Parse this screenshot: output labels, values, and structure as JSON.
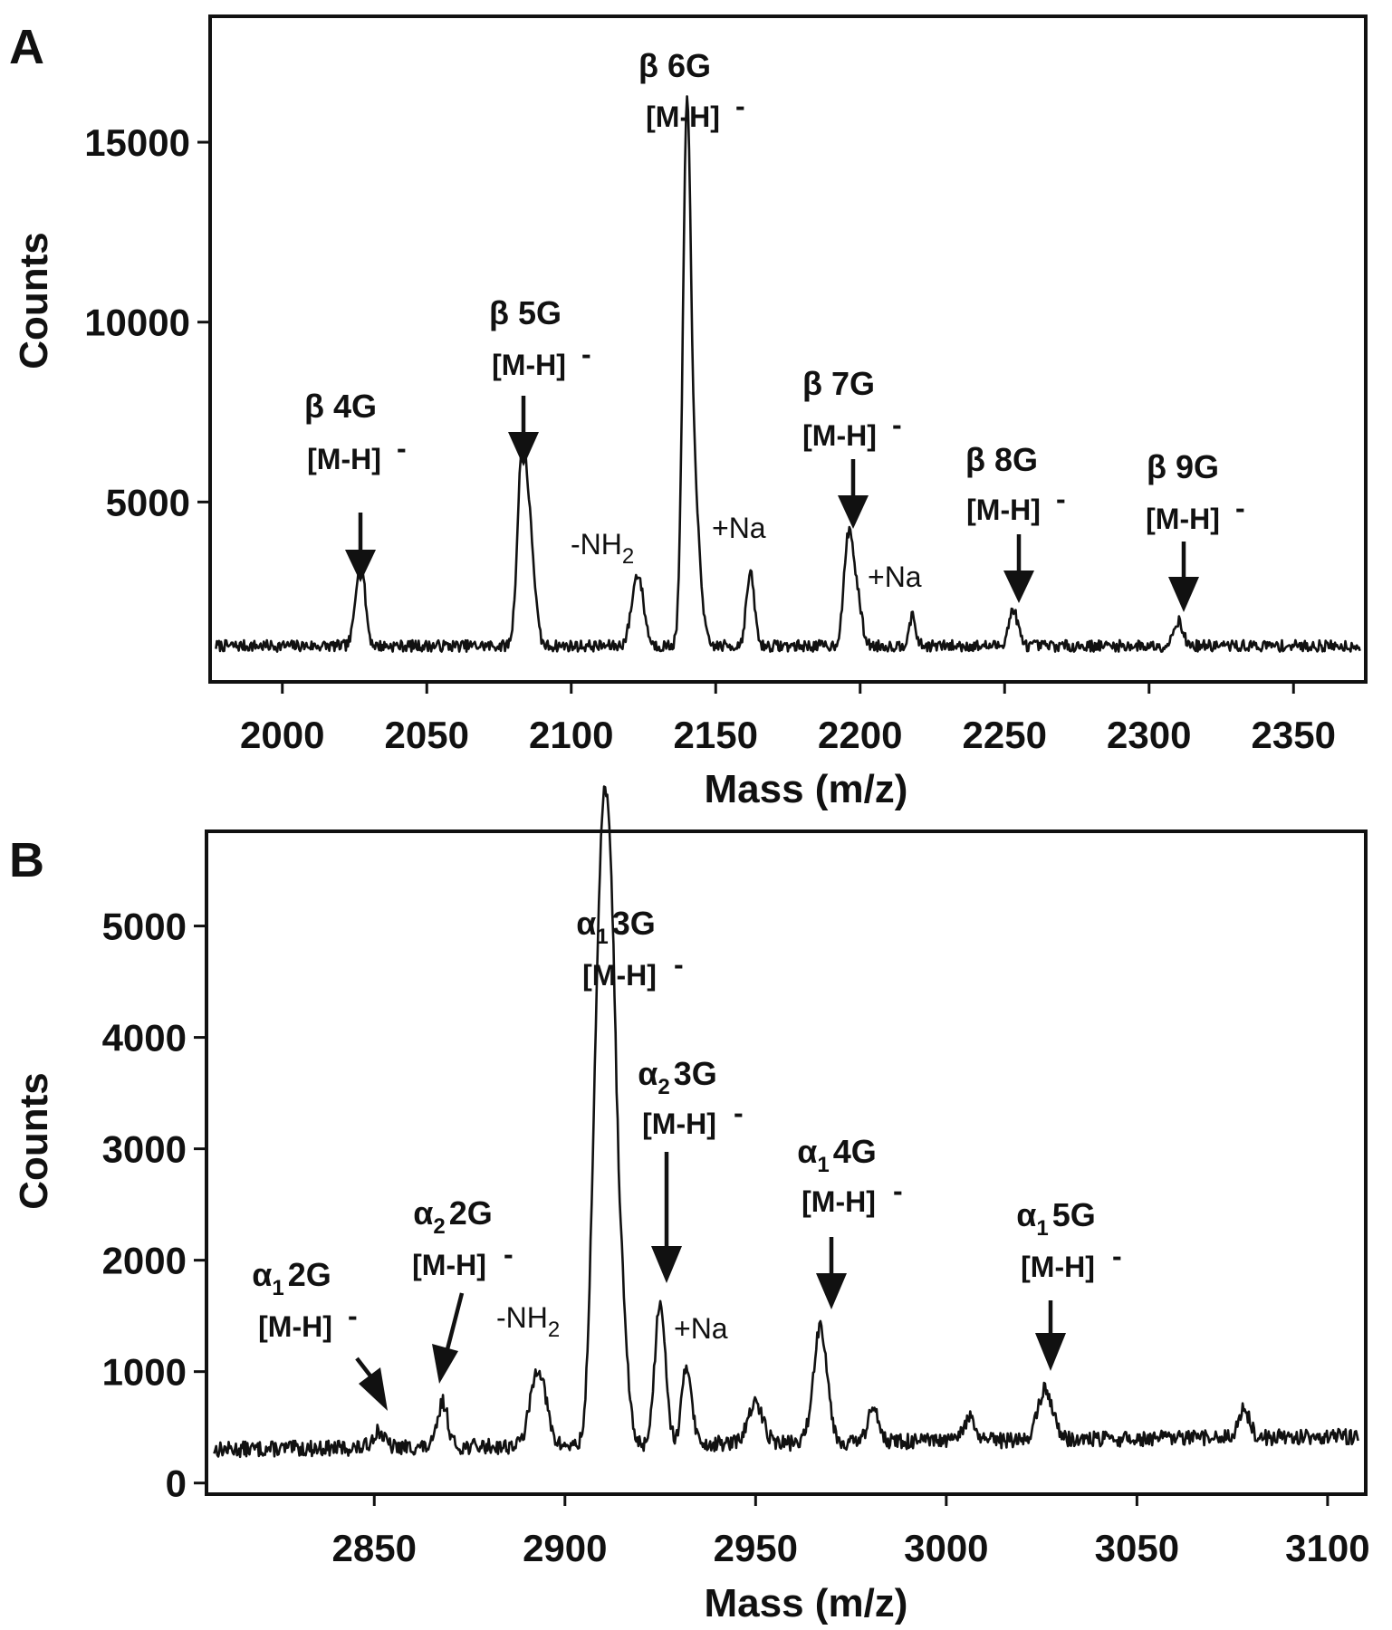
{
  "chart_data": [
    {
      "panel": "A",
      "type": "line",
      "xlabel": "Mass (m/z)",
      "ylabel": "Counts",
      "xlim": [
        1975,
        2375
      ],
      "ylim": [
        0,
        18500
      ],
      "xticks": [
        2000,
        2050,
        2100,
        2150,
        2200,
        2250,
        2300,
        2350
      ],
      "yticks": [
        5000,
        10000,
        15000
      ],
      "baseline": 1000,
      "peaks": [
        {
          "x": 2027,
          "y": 2400,
          "w": 1.6
        },
        {
          "x": 2083,
          "y": 5300,
          "w": 1.6
        },
        {
          "x": 2086,
          "y": 2500,
          "w": 1.6
        },
        {
          "x": 2123,
          "y": 2000,
          "w": 2.0
        },
        {
          "x": 2140,
          "y": 14200,
          "w": 1.4
        },
        {
          "x": 2143,
          "y": 3500,
          "w": 1.8
        },
        {
          "x": 2162,
          "y": 2000,
          "w": 1.4
        },
        {
          "x": 2196,
          "y": 3000,
          "w": 1.6
        },
        {
          "x": 2199,
          "y": 1200,
          "w": 1.6
        },
        {
          "x": 2218,
          "y": 800,
          "w": 1.2
        },
        {
          "x": 2253,
          "y": 1000,
          "w": 1.6
        },
        {
          "x": 2310,
          "y": 700,
          "w": 1.6
        }
      ],
      "annotations": [
        {
          "name": "β 4G",
          "ion": "[M-H]",
          "x": 2027
        },
        {
          "name": "β 5G",
          "ion": "[M-H]",
          "x": 2083
        },
        {
          "name": "β 6G",
          "ion": "[M-H]",
          "x": 2140
        },
        {
          "name": "β 7G",
          "ion": "[M-H]",
          "x": 2196
        },
        {
          "name": "β 8G",
          "ion": "[M-H]",
          "x": 2253
        },
        {
          "name": "β 9G",
          "ion": "[M-H]",
          "x": 2310
        }
      ],
      "adducts": [
        {
          "text": "-NH",
          "sub": "2"
        },
        {
          "text": "+Na",
          "sub": ""
        },
        {
          "text": "+Na",
          "sub": ""
        }
      ]
    },
    {
      "panel": "B",
      "type": "line",
      "xlabel": "Mass (m/z)",
      "ylabel": "Counts",
      "xlim": [
        2806,
        3110
      ],
      "ylim": [
        -100,
        5850
      ],
      "xticks": [
        2850,
        2900,
        2950,
        3000,
        3050,
        3100
      ],
      "yticks": [
        0,
        1000,
        2000,
        3000,
        4000,
        5000
      ],
      "baseline": 300,
      "peaks": [
        {
          "x": 2851,
          "y": 150,
          "w": 1.5
        },
        {
          "x": 2868,
          "y": 400,
          "w": 1.3
        },
        {
          "x": 2893,
          "y": 700,
          "w": 2.0
        },
        {
          "x": 2908,
          "y": 2600,
          "w": 1.4
        },
        {
          "x": 2910,
          "y": 3900,
          "w": 1.2
        },
        {
          "x": 2912,
          "y": 3300,
          "w": 1.2
        },
        {
          "x": 2914,
          "y": 1800,
          "w": 1.8
        },
        {
          "x": 2925,
          "y": 1300,
          "w": 1.4
        },
        {
          "x": 2932,
          "y": 700,
          "w": 1.3
        },
        {
          "x": 2950,
          "y": 350,
          "w": 2.0
        },
        {
          "x": 2967,
          "y": 1050,
          "w": 1.8
        },
        {
          "x": 2981,
          "y": 300,
          "w": 1.5
        },
        {
          "x": 3006,
          "y": 200,
          "w": 1.5
        },
        {
          "x": 3026,
          "y": 450,
          "w": 2.0
        },
        {
          "x": 3078,
          "y": 250,
          "w": 1.5
        }
      ],
      "annotations": [
        {
          "name": "α",
          "sub": "1",
          "suffix": "2G",
          "ion": "[M-H]",
          "x": 2851
        },
        {
          "name": "α",
          "sub": "2",
          "suffix": "2G",
          "ion": "[M-H]",
          "x": 2868
        },
        {
          "name": "α",
          "sub": "1",
          "suffix": "3G",
          "ion": "[M-H]",
          "x": 2910
        },
        {
          "name": "α",
          "sub": "2",
          "suffix": "3G",
          "ion": "[M-H]",
          "x": 2925
        },
        {
          "name": "α",
          "sub": "1",
          "suffix": "4G",
          "ion": "[M-H]",
          "x": 2967
        },
        {
          "name": "α",
          "sub": "1",
          "suffix": "5G",
          "ion": "[M-H]",
          "x": 3026
        }
      ],
      "adducts": [
        {
          "text": "-NH",
          "sub": "2"
        },
        {
          "text": "+Na",
          "sub": ""
        }
      ]
    }
  ]
}
